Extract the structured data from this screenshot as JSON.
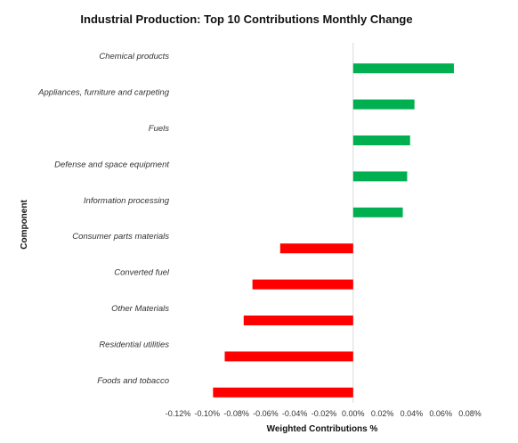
{
  "chart_data": {
    "type": "bar",
    "orientation": "horizontal",
    "title": "Industrial Production: Top 10 Contributions Monthly Change",
    "xlabel": "Weighted Contributions %",
    "ylabel": "Component",
    "categories": [
      "Chemical products",
      "Appliances, furniture and carpeting",
      "Fuels",
      "Defense and space equipment",
      "Information processing",
      "Consumer parts materials",
      "Converted fuel",
      "Other Materials",
      "Residential utilities",
      "Foods and tobacco"
    ],
    "values": [
      0.069,
      0.042,
      0.039,
      0.037,
      0.034,
      -0.05,
      -0.069,
      -0.075,
      -0.088,
      -0.096
    ],
    "xlim": [
      -0.12,
      0.08
    ],
    "xticks": [
      "-0.12%",
      "-0.10%",
      "-0.08%",
      "-0.06%",
      "-0.04%",
      "-0.02%",
      "0.00%",
      "0.02%",
      "0.04%",
      "0.06%",
      "0.08%"
    ],
    "xtick_values": [
      -0.12,
      -0.1,
      -0.08,
      -0.06,
      -0.04,
      -0.02,
      0.0,
      0.02,
      0.04,
      0.06,
      0.08
    ],
    "colors": {
      "positive": "#00b050",
      "negative": "#ff0000",
      "zero_line": "#d9d9d9"
    },
    "grid": false,
    "legend": "none"
  }
}
